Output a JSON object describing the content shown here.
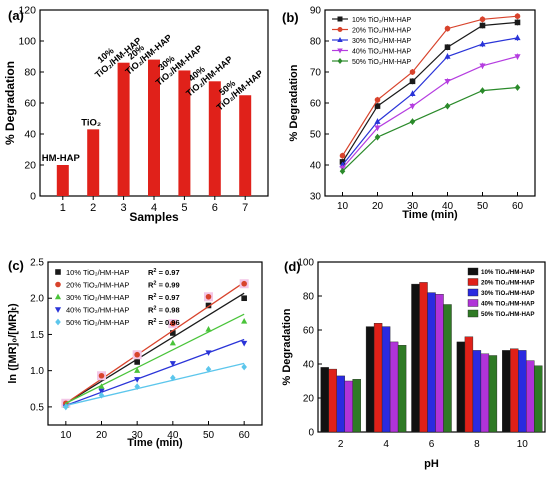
{
  "chart_data": [
    {
      "panel": "(a)",
      "type": "bar",
      "xlabel": "Samples",
      "ylabel": "% Degradation",
      "ylim": [
        0,
        120
      ],
      "yticks": [
        "0",
        "20",
        "40",
        "60",
        "80",
        "100",
        "120"
      ],
      "categories": [
        "1",
        "2",
        "3",
        "4",
        "5",
        "6",
        "7"
      ],
      "values": [
        20,
        43,
        86,
        88,
        81,
        74,
        65
      ],
      "bar_labels": [
        "HM-HAP",
        "TiO₂",
        "10% TiO₂/HM-HAP",
        "20% TiO₂/HM-HAP",
        "30% TiO₂/HM-HAP",
        "40% TiO₂/HM-HAP",
        "50% TiO₂/HM-HAP"
      ],
      "color": "#e0211a"
    },
    {
      "panel": "(b)",
      "type": "line",
      "xlabel": "Time (min)",
      "ylabel": "% Degradation",
      "xlim": [
        5,
        65
      ],
      "ylim": [
        30,
        90
      ],
      "x": [
        10,
        20,
        30,
        40,
        50,
        60
      ],
      "xticks": [
        "10",
        "20",
        "30",
        "40",
        "50",
        "60"
      ],
      "yticks": [
        "30",
        "40",
        "50",
        "60",
        "70",
        "80",
        "90"
      ],
      "legend_position": "top-left",
      "series": [
        {
          "name": "10% TiO₂/HM-HAP",
          "values": [
            41,
            59,
            67,
            78,
            85,
            86
          ],
          "color": "#1a1a1a",
          "marker": "square"
        },
        {
          "name": "20% TiO₂/HM-HAP",
          "values": [
            43,
            61,
            70,
            84,
            87,
            88
          ],
          "color": "#d8432c",
          "marker": "circle"
        },
        {
          "name": "30% TiO₂/HM-HAP",
          "values": [
            40,
            54,
            63,
            75,
            79,
            81
          ],
          "color": "#2a34d8",
          "marker": "triangle-up"
        },
        {
          "name": "40% TiO₂/HM-HAP",
          "values": [
            39,
            52,
            59,
            67,
            72,
            75
          ],
          "color": "#b53de0",
          "marker": "triangle-down"
        },
        {
          "name": "50% TiO₂/HM-HAP",
          "values": [
            38,
            49,
            54,
            59,
            64,
            65
          ],
          "color": "#2a8a2a",
          "marker": "diamond"
        }
      ]
    },
    {
      "panel": "(c)",
      "type": "scatter",
      "xlabel": "Time (min)",
      "ylabel": "ln ([MR]₀/[MR]ₜ)",
      "xlim": [
        5,
        65
      ],
      "ylim": [
        0.25,
        2.5
      ],
      "x": [
        10,
        20,
        30,
        40,
        50,
        60
      ],
      "xticks": [
        "10",
        "20",
        "30",
        "40",
        "50",
        "60"
      ],
      "yticks": [
        "0.5",
        "1.0",
        "1.5",
        "2.0",
        "2.5"
      ],
      "r2_label": "R",
      "legend_position": "top-left",
      "series": [
        {
          "name": "10% TiO₂/HM-HAP",
          "r2": "= 0.97",
          "values": [
            0.55,
            0.9,
            1.12,
            1.52,
            1.9,
            2.0
          ],
          "fit": [
            0.55,
            2.07
          ],
          "color": "#1a1a1a",
          "marker": "square"
        },
        {
          "name": "20% TiO₂/HM-HAP",
          "r2": "= 0.99",
          "values": [
            0.55,
            0.93,
            1.22,
            1.65,
            2.02,
            2.2
          ],
          "fit": [
            0.55,
            2.22
          ],
          "color": "#d8432c",
          "marker": "circle"
        },
        {
          "name": "30% TiO₂/HM-HAP",
          "r2": "= 0.97",
          "values": [
            0.52,
            0.78,
            1.0,
            1.38,
            1.57,
            1.68
          ],
          "fit": [
            0.55,
            1.78
          ],
          "color": "#4ac43a",
          "marker": "triangle-up"
        },
        {
          "name": "40% TiO₂/HM-HAP",
          "r2": "= 0.98",
          "values": [
            0.5,
            0.72,
            0.88,
            1.1,
            1.25,
            1.38
          ],
          "fit": [
            0.52,
            1.43
          ],
          "color": "#2a34d8",
          "marker": "triangle-down"
        },
        {
          "name": "50% TiO₂/HM-HAP",
          "r2": "= 0.96",
          "values": [
            0.5,
            0.66,
            0.78,
            0.9,
            1.02,
            1.05
          ],
          "fit": [
            0.52,
            1.1
          ],
          "color": "#5cc6ec",
          "marker": "diamond"
        }
      ]
    },
    {
      "panel": "(d)",
      "type": "bar",
      "xlabel": "pH",
      "ylabel": "% Degradation",
      "ylim": [
        0,
        100
      ],
      "categories": [
        "2",
        "4",
        "6",
        "8",
        "10"
      ],
      "yticks": [
        "0",
        "20",
        "40",
        "60",
        "80",
        "100"
      ],
      "legend_position": "top-right",
      "series": [
        {
          "name": "10% TiO₂/HM-HAP",
          "values": [
            38,
            62,
            87,
            53,
            48
          ],
          "color": "#111111"
        },
        {
          "name": "20% TiO₂/HM-HAP",
          "values": [
            37,
            64,
            88,
            56,
            49
          ],
          "color": "#e02018"
        },
        {
          "name": "30% TiO₂/HM-HAP",
          "values": [
            33,
            62,
            82,
            48,
            48
          ],
          "color": "#2a2ae0"
        },
        {
          "name": "40% TiO₂/HM-HAP",
          "values": [
            30,
            53,
            81,
            46,
            42
          ],
          "color": "#b033d8"
        },
        {
          "name": "50% TiO₂/HM-HAP",
          "values": [
            31,
            51,
            75,
            45,
            39
          ],
          "color": "#2f7a25"
        }
      ]
    }
  ]
}
